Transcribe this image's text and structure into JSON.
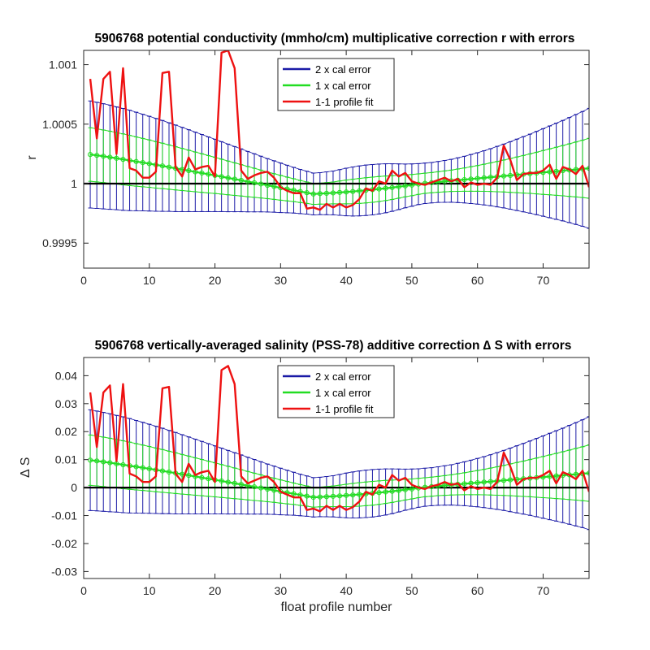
{
  "colors": {
    "two_x": "#1a1aa6",
    "one_x": "#22dd22",
    "fit": "#ee1111",
    "zero": "#000000"
  },
  "chart_data": [
    {
      "type": "line",
      "title": "5906768 potential conductivity (mmho/cm) multiplicative correction r with errors",
      "xlabel": "",
      "ylabel": "r",
      "xlim": [
        0,
        77
      ],
      "ylim": [
        0.99929,
        1.00112
      ],
      "xticks": [
        0,
        10,
        20,
        30,
        40,
        50,
        60,
        70
      ],
      "xtick_labels": [
        "0",
        "10",
        "20",
        "30",
        "40",
        "50",
        "60",
        "70"
      ],
      "yticks": [
        0.9995,
        1.0,
        1.0005,
        1.001
      ],
      "ytick_labels": [
        "0.9995",
        "1",
        "1.0005",
        "1.001"
      ],
      "grid": false,
      "legend_position": "top-center",
      "legend": [
        "2 x cal error",
        "1 x cal error",
        "1-1 profile fit"
      ],
      "reference_line": 1.0,
      "x": [
        1,
        2,
        3,
        4,
        5,
        6,
        7,
        8,
        9,
        10,
        11,
        12,
        13,
        14,
        15,
        16,
        17,
        18,
        19,
        20,
        21,
        22,
        23,
        24,
        25,
        26,
        27,
        28,
        29,
        30,
        31,
        32,
        33,
        34,
        35,
        36,
        37,
        38,
        39,
        40,
        41,
        42,
        43,
        44,
        45,
        46,
        47,
        48,
        49,
        50,
        51,
        52,
        53,
        54,
        55,
        56,
        57,
        58,
        59,
        60,
        61,
        62,
        63,
        64,
        65,
        66,
        67,
        68,
        69,
        70,
        71,
        72,
        73,
        74,
        75,
        76,
        77
      ],
      "series": [
        {
          "name": "1 x cal error",
          "center": [
            1.000245,
            1.000238,
            1.00023,
            1.000222,
            1.000213,
            1.000204,
            1.000195,
            1.000186,
            1.000177,
            1.000168,
            1.000158,
            1.000149,
            1.000139,
            1.000129,
            1.000119,
            1.000109,
            1.000099,
            1.000089,
            1.000079,
            1.000069,
            1.000059,
            1.000048,
            1.000038,
            1.000028,
            1.000017,
            1.000007,
            0.999997,
            0.999986,
            0.999976,
            0.999965,
            0.999955,
            0.999945,
            0.999934,
            0.999924,
            0.999913,
            0.999916,
            0.999919,
            0.999922,
            0.999926,
            0.99993,
            0.999934,
            0.999939,
            0.999944,
            0.999949,
            0.999955,
            0.999961,
            0.999967,
            0.999974,
            0.999981,
            0.999988,
            0.999996,
            1.000003,
            1.000008,
            1.000014,
            1.000019,
            1.000024,
            1.000029,
            1.000034,
            1.000039,
            1.000044,
            1.000049,
            1.000054,
            1.000059,
            1.000064,
            1.000069,
            1.000074,
            1.000079,
            1.000084,
            1.000089,
            1.000094,
            1.000099,
            1.000104,
            1.000109,
            1.000114,
            1.000119,
            1.000124,
            1.000129
          ],
          "error": [
            0.000225,
            0.000223,
            0.000221,
            0.000219,
            0.000216,
            0.000214,
            0.000211,
            0.000207,
            0.000203,
            0.000199,
            0.000195,
            0.000191,
            0.000186,
            0.000182,
            0.000177,
            0.000172,
            0.000167,
            0.000162,
            0.000157,
            0.000152,
            0.000147,
            0.000142,
            0.000137,
            0.000132,
            0.000127,
            0.000122,
            0.000117,
            0.000112,
            0.000108,
            0.000104,
            0.0001,
            9.6e-05,
            9.3e-05,
            9e-05,
            8.8e-05,
            8.8e-05,
            9e-05,
            9.2e-05,
            9.6e-05,
            0.0001,
            0.000103,
            0.000105,
            0.000106,
            0.000106,
            0.000105,
            0.000103,
            0.0001,
            9.6e-05,
            9.2e-05,
            8.9e-05,
            8.6e-05,
            8.5e-05,
            8.5e-05,
            8.6e-05,
            8.8e-05,
            9e-05,
            9.4e-05,
            9.8e-05,
            0.000103,
            0.000108,
            0.000114,
            0.00012,
            0.000127,
            0.000134,
            0.000142,
            0.00015,
            0.000158,
            0.000166,
            0.000175,
            0.000184,
            0.000193,
            0.000202,
            0.000211,
            0.000221,
            0.000231,
            0.000241,
            0.000252
          ]
        },
        {
          "name": "2 x cal error",
          "error_multiplier": 2
        },
        {
          "name": "1-1 profile fit",
          "values": [
            1.00088,
            1.00038,
            1.00088,
            1.00094,
            1.00025,
            1.00097,
            1.00013,
            1.00011,
            1.00005,
            1.00005,
            1.0001,
            1.00093,
            1.00094,
            1.00014,
            1.00006,
            1.00022,
            1.00012,
            1.00014,
            1.00015,
            1.00006,
            1.0011,
            1.00112,
            1.00097,
            1.00011,
            1.00004,
            1.00007,
            1.00009,
            1.0001,
            1.00005,
            0.99997,
            0.99994,
            0.99992,
            0.99992,
            0.99979,
            0.9998,
            0.99978,
            0.99983,
            0.9998,
            0.99983,
            0.9998,
            0.99982,
            0.99987,
            0.99996,
            0.99994,
            1.00002,
            1.0,
            1.00011,
            1.00006,
            1.00009,
            1.00002,
            1.0,
            0.99999,
            1.00001,
            1.00003,
            1.00005,
            1.00002,
            1.00004,
            0.99997,
            1.00001,
            0.99999,
            1.0,
            0.99999,
            1.00005,
            1.00032,
            1.0002,
            1.00003,
            1.00008,
            1.00009,
            1.00009,
            1.00011,
            1.00016,
            1.00004,
            1.00014,
            1.00012,
            1.00008,
            1.00015,
            0.99997
          ]
        }
      ]
    },
    {
      "type": "line",
      "title": "5906768 vertically-averaged salinity (PSS-78) additive correction ∆ S with errors",
      "xlabel": "float profile number",
      "ylabel": "∆ S",
      "xlim": [
        0,
        77
      ],
      "ylim": [
        -0.0325,
        0.0465
      ],
      "xticks": [
        0,
        10,
        20,
        30,
        40,
        50,
        60,
        70
      ],
      "xtick_labels": [
        "0",
        "10",
        "20",
        "30",
        "40",
        "50",
        "60",
        "70"
      ],
      "yticks": [
        -0.03,
        -0.02,
        -0.01,
        0,
        0.01,
        0.02,
        0.03,
        0.04
      ],
      "ytick_labels": [
        "-0.03",
        "-0.02",
        "-0.01",
        "0",
        "0.01",
        "0.02",
        "0.03",
        "0.04"
      ],
      "grid": false,
      "legend_position": "top-center",
      "legend": [
        "2 x cal error",
        "1 x cal error",
        "1-1 profile fit"
      ],
      "reference_line": 0,
      "x": [
        1,
        2,
        3,
        4,
        5,
        6,
        7,
        8,
        9,
        10,
        11,
        12,
        13,
        14,
        15,
        16,
        17,
        18,
        19,
        20,
        21,
        22,
        23,
        24,
        25,
        26,
        27,
        28,
        29,
        30,
        31,
        32,
        33,
        34,
        35,
        36,
        37,
        38,
        39,
        40,
        41,
        42,
        43,
        44,
        45,
        46,
        47,
        48,
        49,
        50,
        51,
        52,
        53,
        54,
        55,
        56,
        57,
        58,
        59,
        60,
        61,
        62,
        63,
        64,
        65,
        66,
        67,
        68,
        69,
        70,
        71,
        72,
        73,
        74,
        75,
        76,
        77
      ],
      "series": [
        {
          "name": "1 x cal error",
          "center": [
            0.0098,
            0.00952,
            0.0092,
            0.00888,
            0.00852,
            0.00816,
            0.0078,
            0.00744,
            0.00708,
            0.00672,
            0.00632,
            0.00596,
            0.00556,
            0.00516,
            0.00476,
            0.00436,
            0.00396,
            0.00356,
            0.00316,
            0.00276,
            0.00236,
            0.00192,
            0.00152,
            0.00112,
            0.00068,
            0.00028,
            -0.00012,
            -0.00056,
            -0.00096,
            -0.0014,
            -0.0018,
            -0.0022,
            -0.00264,
            -0.00304,
            -0.00348,
            -0.00336,
            -0.00324,
            -0.00312,
            -0.00296,
            -0.0028,
            -0.00264,
            -0.00244,
            -0.00224,
            -0.00204,
            -0.0018,
            -0.00156,
            -0.00132,
            -0.00104,
            -0.00076,
            -0.00048,
            -0.00016,
            0.00012,
            0.00032,
            0.00056,
            0.00076,
            0.00096,
            0.00116,
            0.00136,
            0.00156,
            0.00176,
            0.00196,
            0.00216,
            0.00236,
            0.00256,
            0.00276,
            0.00296,
            0.00316,
            0.00336,
            0.00356,
            0.00376,
            0.00396,
            0.00416,
            0.00436,
            0.00456,
            0.00476,
            0.00496,
            0.00516
          ],
          "error": [
            0.009,
            0.00892,
            0.00884,
            0.00876,
            0.00864,
            0.00856,
            0.00844,
            0.00828,
            0.00812,
            0.00796,
            0.0078,
            0.00764,
            0.00744,
            0.00728,
            0.00708,
            0.00688,
            0.00668,
            0.00648,
            0.00628,
            0.00608,
            0.00588,
            0.00568,
            0.00548,
            0.00528,
            0.00508,
            0.00488,
            0.00468,
            0.00448,
            0.00432,
            0.00416,
            0.004,
            0.00384,
            0.00372,
            0.0036,
            0.00352,
            0.00352,
            0.0036,
            0.00368,
            0.00384,
            0.004,
            0.00412,
            0.0042,
            0.00424,
            0.00424,
            0.0042,
            0.00412,
            0.004,
            0.00384,
            0.00368,
            0.00356,
            0.00344,
            0.0034,
            0.0034,
            0.00344,
            0.00352,
            0.0036,
            0.00376,
            0.00392,
            0.00412,
            0.00432,
            0.00456,
            0.0048,
            0.00508,
            0.00536,
            0.00568,
            0.006,
            0.00632,
            0.00664,
            0.007,
            0.00736,
            0.00772,
            0.00808,
            0.00844,
            0.00884,
            0.00924,
            0.00964,
            0.01008
          ]
        },
        {
          "name": "2 x cal error",
          "error_multiplier": 2
        },
        {
          "name": "1-1 profile fit",
          "values": [
            0.034,
            0.0145,
            0.034,
            0.0365,
            0.0095,
            0.037,
            0.005,
            0.004,
            0.002,
            0.002,
            0.004,
            0.0355,
            0.036,
            0.005,
            0.002,
            0.0085,
            0.0045,
            0.0055,
            0.006,
            0.002,
            0.042,
            0.0435,
            0.037,
            0.004,
            0.0015,
            0.0025,
            0.0035,
            0.004,
            0.002,
            -0.0015,
            -0.0025,
            -0.0035,
            -0.0035,
            -0.008,
            -0.0075,
            -0.0085,
            -0.0065,
            -0.008,
            -0.0065,
            -0.008,
            -0.007,
            -0.005,
            -0.0015,
            -0.0025,
            0.001,
            0.0,
            0.0045,
            0.0025,
            0.0035,
            0.001,
            0.0,
            -0.0005,
            0.0005,
            0.001,
            0.002,
            0.001,
            0.0015,
            -0.001,
            0.0005,
            -0.0005,
            0.0,
            -0.0005,
            0.002,
            0.0125,
            0.0075,
            0.001,
            0.003,
            0.0035,
            0.0035,
            0.0045,
            0.006,
            0.0015,
            0.0055,
            0.0045,
            0.003,
            0.006,
            -0.0015
          ]
        }
      ]
    }
  ]
}
